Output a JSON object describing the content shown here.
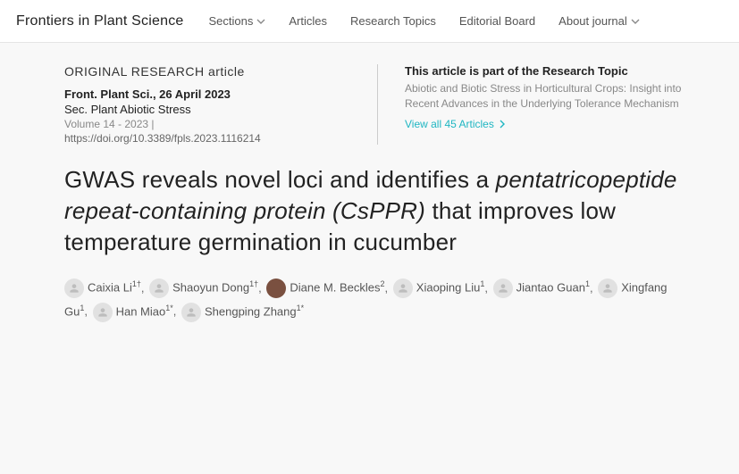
{
  "brand": "Frontiers in Plant Science",
  "nav": {
    "sections": "Sections",
    "articles": "Articles",
    "topics": "Research Topics",
    "editorial": "Editorial Board",
    "about": "About journal"
  },
  "meta": {
    "kind": "ORIGINAL RESEARCH article",
    "journal_line": "Front. Plant Sci., 26 April 2023",
    "section_line": "Sec. Plant Abiotic Stress",
    "volume_line": "Volume 14 - 2023 |",
    "doi": "https://doi.org/10.3389/fpls.2023.1116214"
  },
  "research_topic": {
    "heading": "This article is part of the Research Topic",
    "body": "Abiotic and Biotic Stress in Horticultural Crops: Insight into Recent Advances in the Underlying Tolerance Mechanism",
    "link": "View all 45 Articles"
  },
  "title_plain": "GWAS reveals novel loci and identifies a ",
  "title_italic": "pentatricopeptide repeat-containing protein (CsPPR)",
  "title_tail": " that improves low temperature germination in cucumber",
  "authors": [
    {
      "name": "Caixia Li",
      "aff": "1†",
      "photo": false
    },
    {
      "name": "Shaoyun Dong",
      "aff": "1†",
      "photo": false
    },
    {
      "name": "Diane M. Beckles",
      "aff": "2",
      "photo": true
    },
    {
      "name": "Xiaoping Liu",
      "aff": "1",
      "photo": false
    },
    {
      "name": "Jiantao Guan",
      "aff": "1",
      "photo": false
    },
    {
      "name": "Xingfang Gu",
      "aff": "1",
      "photo": false
    },
    {
      "name": "Han Miao",
      "aff": "1*",
      "photo": false
    },
    {
      "name": "Shengping Zhang",
      "aff": "1*",
      "photo": false
    }
  ]
}
